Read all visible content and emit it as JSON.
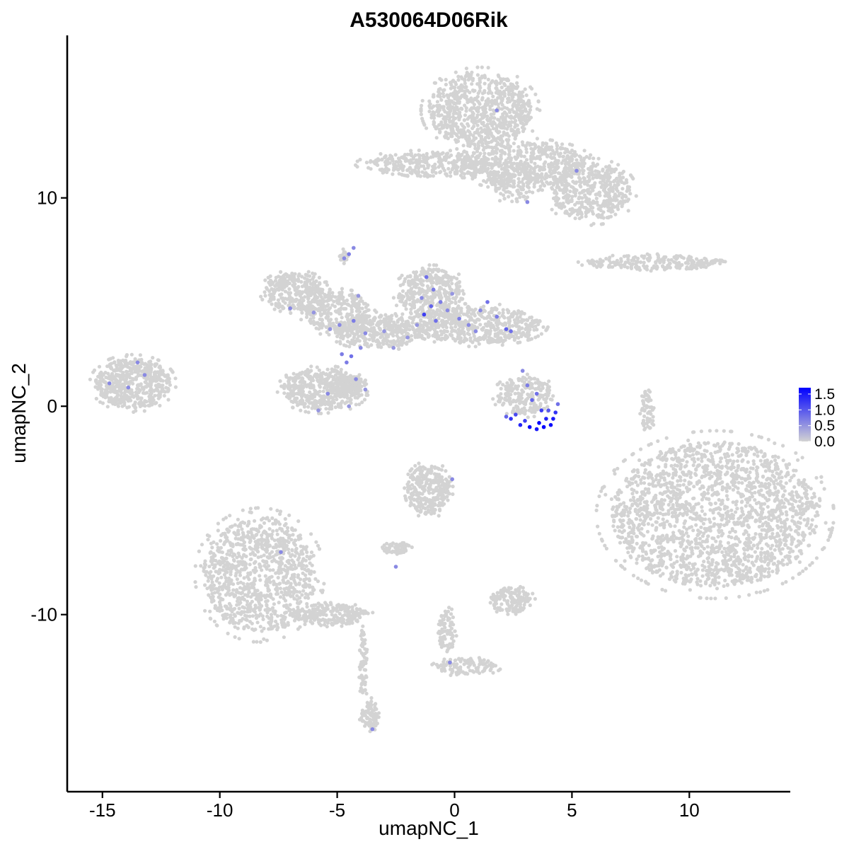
{
  "chart_data": {
    "type": "scatter",
    "title": "A530064D06Rik",
    "xlabel": "umapNC_1",
    "ylabel": "umapNC_2",
    "xlim": [
      -16.5,
      14.3
    ],
    "ylim": [
      -18.5,
      17.8
    ],
    "x_ticks": [
      {
        "value": -15,
        "label": "-15"
      },
      {
        "value": -10,
        "label": "-10"
      },
      {
        "value": -5,
        "label": "-5"
      },
      {
        "value": 0,
        "label": "0"
      },
      {
        "value": 5,
        "label": "5"
      },
      {
        "value": 10,
        "label": "10"
      }
    ],
    "y_ticks": [
      {
        "value": 10,
        "label": "10"
      },
      {
        "value": 0,
        "label": "0"
      },
      {
        "value": -10,
        "label": "-10"
      }
    ],
    "color_scale": {
      "low_color": "#d3d3d3",
      "high_color": "#0000ff",
      "min": 0,
      "max": 1.7,
      "ticks": [
        {
          "value": 0.0,
          "label": "0.0"
        },
        {
          "value": 0.5,
          "label": "0.5"
        },
        {
          "value": 1.0,
          "label": "1.0"
        },
        {
          "value": 1.5,
          "label": "1.5"
        }
      ]
    },
    "clusters": [
      {
        "cx": 1.1,
        "cy": 14.2,
        "rx": 2.2,
        "ry": 1.8,
        "n": 800
      },
      {
        "cx": 3.0,
        "cy": 11.6,
        "rx": 2.6,
        "ry": 1.1,
        "n": 500
      },
      {
        "cx": -1.0,
        "cy": 11.6,
        "rx": 2.8,
        "ry": 0.6,
        "n": 350
      },
      {
        "cx": 5.8,
        "cy": 10.3,
        "rx": 1.7,
        "ry": 1.4,
        "n": 450
      },
      {
        "cx": 2.6,
        "cy": 10.8,
        "rx": 1.0,
        "ry": 1.0,
        "n": 150
      },
      {
        "cx": 8.6,
        "cy": 6.9,
        "rx": 2.9,
        "ry": 0.35,
        "n": 220
      },
      {
        "cx": -6.8,
        "cy": 5.5,
        "rx": 1.3,
        "ry": 0.9,
        "n": 320
      },
      {
        "cx": -5.0,
        "cy": 4.5,
        "rx": 1.4,
        "ry": 1.0,
        "n": 300
      },
      {
        "cx": -1.0,
        "cy": 5.4,
        "rx": 1.4,
        "ry": 1.2,
        "n": 400
      },
      {
        "cx": 1.0,
        "cy": 3.9,
        "rx": 2.6,
        "ry": 0.9,
        "n": 550
      },
      {
        "cx": -3.2,
        "cy": 3.6,
        "rx": 1.9,
        "ry": 0.8,
        "n": 380
      },
      {
        "cx": -5.6,
        "cy": 0.8,
        "rx": 1.7,
        "ry": 1.0,
        "n": 450
      },
      {
        "cx": -13.7,
        "cy": 1.1,
        "rx": 1.6,
        "ry": 1.2,
        "n": 550
      },
      {
        "cx": 11.1,
        "cy": -5.2,
        "rx": 4.4,
        "ry": 3.5,
        "n": 2000
      },
      {
        "cx": -8.3,
        "cy": -8.1,
        "rx": 2.4,
        "ry": 2.8,
        "n": 1000
      },
      {
        "cx": -5.3,
        "cy": -10.0,
        "rx": 1.6,
        "ry": 0.5,
        "n": 250
      },
      {
        "cx": -1.1,
        "cy": -4.0,
        "rx": 0.9,
        "ry": 1.2,
        "n": 300
      },
      {
        "cx": 2.4,
        "cy": -9.3,
        "rx": 0.9,
        "ry": 0.6,
        "n": 150
      },
      {
        "cx": -2.5,
        "cy": -6.8,
        "rx": 0.6,
        "ry": 0.3,
        "n": 60
      },
      {
        "cx": -3.6,
        "cy": -14.8,
        "rx": 0.4,
        "ry": 0.7,
        "n": 80
      },
      {
        "cx": 0.5,
        "cy": -12.5,
        "rx": 1.3,
        "ry": 0.4,
        "n": 120
      },
      {
        "cx": -0.3,
        "cy": -10.8,
        "rx": 0.4,
        "ry": 1.0,
        "n": 80
      },
      {
        "cx": 8.2,
        "cy": -0.2,
        "rx": 0.3,
        "ry": 1.0,
        "n": 60
      },
      {
        "cx": -3.9,
        "cy": -12.4,
        "rx": 0.2,
        "ry": 1.6,
        "n": 60
      },
      {
        "cx": 3.0,
        "cy": 0.5,
        "rx": 1.2,
        "ry": 0.9,
        "n": 220
      },
      {
        "cx": -4.5,
        "cy": 1.0,
        "rx": 0.8,
        "ry": 0.5,
        "n": 120
      },
      {
        "cx": -4.7,
        "cy": 7.2,
        "rx": 0.2,
        "ry": 0.3,
        "n": 20
      }
    ],
    "expressing_points": [
      {
        "x": 2.4,
        "y": -0.6,
        "v": 1.3
      },
      {
        "x": 2.8,
        "y": -0.9,
        "v": 1.4
      },
      {
        "x": 3.2,
        "y": -1.0,
        "v": 1.6
      },
      {
        "x": 3.5,
        "y": -1.1,
        "v": 1.5
      },
      {
        "x": 3.8,
        "y": -1.0,
        "v": 1.7
      },
      {
        "x": 4.1,
        "y": -0.9,
        "v": 1.6
      },
      {
        "x": 4.2,
        "y": -0.6,
        "v": 1.5
      },
      {
        "x": 4.3,
        "y": -0.3,
        "v": 1.3
      },
      {
        "x": 3.0,
        "y": -0.7,
        "v": 1.2
      },
      {
        "x": 3.6,
        "y": -0.8,
        "v": 1.7
      },
      {
        "x": 3.9,
        "y": -0.6,
        "v": 1.4
      },
      {
        "x": 2.6,
        "y": -0.4,
        "v": 1.1
      },
      {
        "x": 3.3,
        "y": 0.3,
        "v": 0.9
      },
      {
        "x": 3.5,
        "y": 0.6,
        "v": 0.8
      },
      {
        "x": 3.1,
        "y": 1.0,
        "v": 0.7
      },
      {
        "x": 2.9,
        "y": 1.7,
        "v": 0.6
      },
      {
        "x": 4.4,
        "y": 0.1,
        "v": 0.8
      },
      {
        "x": 3.7,
        "y": -0.2,
        "v": 1.2
      },
      {
        "x": 2.2,
        "y": -0.5,
        "v": 0.9
      },
      {
        "x": 4.0,
        "y": -0.2,
        "v": 1.0
      },
      {
        "x": -1.2,
        "y": 6.2,
        "v": 0.8
      },
      {
        "x": -0.9,
        "y": 5.6,
        "v": 0.7
      },
      {
        "x": -1.4,
        "y": 5.2,
        "v": 0.6
      },
      {
        "x": -1.0,
        "y": 4.8,
        "v": 0.9
      },
      {
        "x": -0.6,
        "y": 5.0,
        "v": 0.7
      },
      {
        "x": -0.3,
        "y": 4.6,
        "v": 0.6
      },
      {
        "x": 0.2,
        "y": 4.2,
        "v": 0.7
      },
      {
        "x": 0.6,
        "y": 3.9,
        "v": 0.6
      },
      {
        "x": 1.1,
        "y": 4.6,
        "v": 0.6
      },
      {
        "x": 1.4,
        "y": 5.0,
        "v": 0.8
      },
      {
        "x": 1.8,
        "y": 4.3,
        "v": 0.7
      },
      {
        "x": 2.2,
        "y": 3.7,
        "v": 0.9
      },
      {
        "x": -1.3,
        "y": 4.4,
        "v": 1.2
      },
      {
        "x": -0.8,
        "y": 4.1,
        "v": 0.8
      },
      {
        "x": 0.9,
        "y": 3.6,
        "v": 0.6
      },
      {
        "x": 2.4,
        "y": 3.6,
        "v": 0.8
      },
      {
        "x": -1.6,
        "y": 3.9,
        "v": 0.5
      },
      {
        "x": -0.1,
        "y": 5.4,
        "v": 0.5
      },
      {
        "x": -4.5,
        "y": 7.3,
        "v": 0.7
      },
      {
        "x": -4.7,
        "y": 7.1,
        "v": 0.6
      },
      {
        "x": -4.3,
        "y": 7.6,
        "v": 0.6
      },
      {
        "x": -4.4,
        "y": 2.4,
        "v": 0.8
      },
      {
        "x": -4.6,
        "y": 2.1,
        "v": 0.7
      },
      {
        "x": -4.9,
        "y": 3.9,
        "v": 0.6
      },
      {
        "x": -4.3,
        "y": 4.1,
        "v": 0.7
      },
      {
        "x": -3.8,
        "y": 3.5,
        "v": 0.6
      },
      {
        "x": -5.3,
        "y": 3.7,
        "v": 0.5
      },
      {
        "x": -4.0,
        "y": 2.8,
        "v": 0.6
      },
      {
        "x": -4.8,
        "y": 2.5,
        "v": 0.7
      },
      {
        "x": -4.1,
        "y": 5.3,
        "v": 0.5
      },
      {
        "x": -5.4,
        "y": 0.6,
        "v": 0.6
      },
      {
        "x": -4.2,
        "y": 1.3,
        "v": 0.6
      },
      {
        "x": -3.8,
        "y": 0.8,
        "v": 0.5
      },
      {
        "x": -5.8,
        "y": -0.2,
        "v": 0.5
      },
      {
        "x": -4.5,
        "y": 0.0,
        "v": 0.5
      },
      {
        "x": -7.0,
        "y": 4.7,
        "v": 0.6
      },
      {
        "x": -6.0,
        "y": 4.5,
        "v": 0.5
      },
      {
        "x": -3.0,
        "y": 3.6,
        "v": 0.5
      },
      {
        "x": -2.0,
        "y": 3.3,
        "v": 0.5
      },
      {
        "x": -2.6,
        "y": 2.8,
        "v": 0.5
      },
      {
        "x": -13.5,
        "y": 2.1,
        "v": 0.6
      },
      {
        "x": -13.9,
        "y": 0.9,
        "v": 0.6
      },
      {
        "x": -14.7,
        "y": 1.1,
        "v": 0.6
      },
      {
        "x": -13.2,
        "y": 1.5,
        "v": 0.6
      },
      {
        "x": 1.8,
        "y": 14.2,
        "v": 0.6
      },
      {
        "x": 5.2,
        "y": 11.3,
        "v": 0.6
      },
      {
        "x": 3.1,
        "y": 9.8,
        "v": 0.6
      },
      {
        "x": -0.1,
        "y": -3.5,
        "v": 0.6
      },
      {
        "x": -7.4,
        "y": -7.0,
        "v": 0.6
      },
      {
        "x": -2.5,
        "y": -7.7,
        "v": 0.6
      },
      {
        "x": -0.2,
        "y": -12.3,
        "v": 0.6
      },
      {
        "x": -3.5,
        "y": -15.5,
        "v": 0.6
      }
    ]
  }
}
